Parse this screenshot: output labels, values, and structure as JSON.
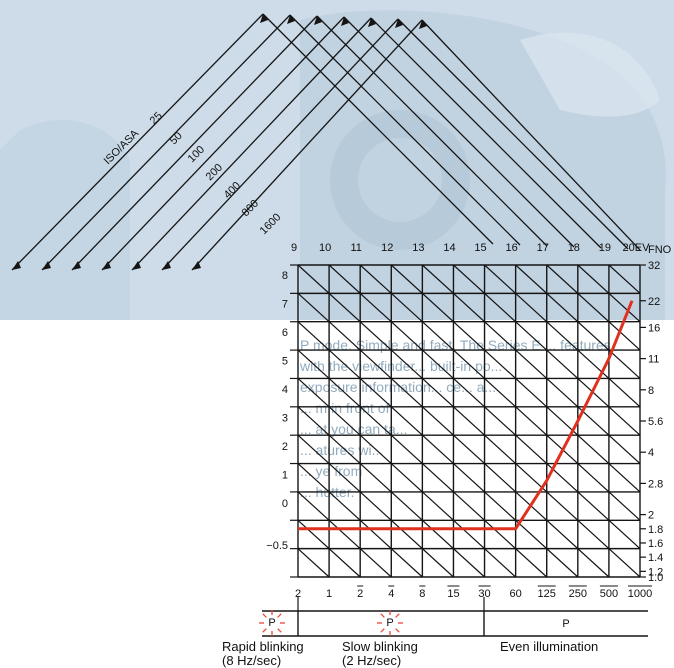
{
  "iso": {
    "title": "ISO/ASA",
    "values": [
      "25",
      "50",
      "100",
      "200",
      "400",
      "800",
      "1600"
    ]
  },
  "ev": {
    "labels": [
      "9",
      "10",
      "11",
      "12",
      "13",
      "14",
      "15",
      "16",
      "17",
      "18",
      "19",
      "20EV"
    ]
  },
  "fno": {
    "heading": "FNO",
    "labels": [
      "32",
      "22",
      "16",
      "11",
      "8",
      "5.6",
      "4",
      "2.8",
      "2",
      "1.8",
      "1.6",
      "1.4",
      "1.2",
      "1.0"
    ]
  },
  "left_axis": {
    "labels": [
      "8",
      "7",
      "6",
      "5",
      "4",
      "3",
      "2",
      "1",
      "0",
      "−0.5"
    ]
  },
  "shutter": {
    "labels": [
      "2",
      "1",
      "2",
      "4",
      "8",
      "15",
      "30",
      "60",
      "125",
      "250",
      "500",
      "1000"
    ],
    "overlined": [
      false,
      false,
      true,
      true,
      true,
      true,
      true,
      false,
      true,
      true,
      true,
      true
    ]
  },
  "indicator": {
    "symbol": "P",
    "rapid": {
      "line1": "Rapid blinking",
      "line2": "(8 Hz/sec)"
    },
    "slow": {
      "line1": "Slow blinking",
      "line2": "(2 Hz/sec)"
    },
    "even": {
      "label": "Even illumination"
    }
  },
  "background_text": {
    "lines": [
      "P mode. Simple and fast. The Series E ... features",
      "with the viewfinder... built-in po...",
      "exposure information... ce... a...",
      "... m in front of",
      "... at you can ta...",
      "... atures wi...",
      "... ye from",
      "... hutter."
    ]
  },
  "colors": {
    "grid": "#151515",
    "program_line": "#e0311f",
    "blink": "#e8483a",
    "background_photo": "#c9d9e6"
  },
  "chart_data": {
    "type": "line",
    "xlabel": "",
    "ylabel": "",
    "series": [
      {
        "x": [
          "2",
          "1",
          "2",
          "4",
          "8",
          "15",
          "30",
          "60",
          "125",
          "250",
          "500",
          "1000"
        ],
        "y": [
          "1.8",
          "1.8",
          "1.8",
          "1.8",
          "1.8",
          "1.8",
          "1.8",
          "1.8",
          "2.8",
          "5.6",
          "11",
          "22"
        ]
      }
    ]
  }
}
